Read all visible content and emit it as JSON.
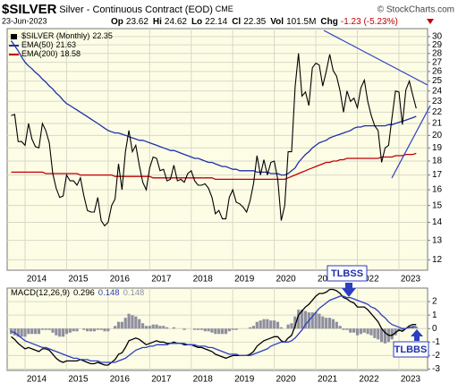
{
  "chart_data": [
    {
      "type": "line",
      "title": "$SILVER",
      "subtitle": "Silver - Continuous Contract (EOD)",
      "exchange": "CME",
      "credit": "© StockCharts.com",
      "date": "23-Jun-2023",
      "quote": [
        {
          "label": "Op",
          "value": 23.62
        },
        {
          "label": "Hi",
          "value": 24.62
        },
        {
          "label": "Lo",
          "value": 22.14
        },
        {
          "label": "Cl",
          "value": 22.35
        },
        {
          "label": "Vol",
          "value": "101.5M"
        },
        {
          "label": "Chg",
          "value": "-1.23 (-5.23%)"
        }
      ],
      "categories": [
        null,
        null,
        null,
        null,
        "2014",
        null,
        null,
        null,
        null,
        null,
        null,
        null,
        null,
        null,
        null,
        null,
        "2015",
        null,
        null,
        null,
        null,
        null,
        null,
        null,
        null,
        null,
        null,
        null,
        "2016",
        null,
        null,
        null,
        null,
        null,
        null,
        null,
        null,
        null,
        null,
        null,
        "2017",
        null,
        null,
        null,
        null,
        null,
        null,
        null,
        null,
        null,
        null,
        null,
        "2018",
        null,
        null,
        null,
        null,
        null,
        null,
        null,
        null,
        null,
        null,
        null,
        "2019",
        null,
        null,
        null,
        null,
        null,
        null,
        null,
        null,
        null,
        null,
        null,
        "2020",
        null,
        null,
        null,
        null,
        null,
        null,
        null,
        null,
        null,
        null,
        null,
        "2021",
        null,
        null,
        null,
        null,
        null,
        null,
        null,
        null,
        null,
        null,
        null,
        "2022",
        null,
        null,
        null,
        null,
        null,
        null,
        null,
        null,
        null,
        null,
        null,
        "2023",
        null,
        null,
        null,
        null,
        null
      ],
      "log_scale": true,
      "grid": true,
      "ylim": [
        11.5,
        31
      ],
      "yticks": [
        12,
        13,
        14,
        15,
        16,
        17,
        18,
        19,
        20,
        21,
        22,
        23,
        24,
        25,
        26,
        27,
        28,
        29,
        30
      ],
      "series": [
        {
          "name": "$SILVER (Monthly)",
          "legend_value": 22.35,
          "color": "#000000",
          "values": [
            21.7,
            21.8,
            19.5,
            19.5,
            19.2,
            21.0,
            19.7,
            19.1,
            19.0,
            21.0,
            20.4,
            19.4,
            17.1,
            16.1,
            15.5,
            15.6,
            17.0,
            16.6,
            16.6,
            16.3,
            16.8,
            15.6,
            14.7,
            14.6,
            14.6,
            15.5,
            14.1,
            13.8,
            14.0,
            15.0,
            15.4,
            17.8,
            16.0,
            18.7,
            20.4,
            18.7,
            19.2,
            17.7,
            16.5,
            16.0,
            17.5,
            18.3,
            18.2,
            17.3,
            17.4,
            16.6,
            16.7,
            17.7,
            16.6,
            16.7,
            16.5,
            17.1,
            17.3,
            16.6,
            16.3,
            16.3,
            16.4,
            16.1,
            15.5,
            14.5,
            14.7,
            14.2,
            14.2,
            15.5,
            16.0,
            15.2,
            15.1,
            14.9,
            14.6,
            15.3,
            16.4,
            18.4,
            17.0,
            18.1,
            17.0,
            17.9,
            18.0,
            16.7,
            14.1,
            15.0,
            18.7,
            18.7,
            24.4,
            28.0,
            23.5,
            23.9,
            22.6,
            26.4,
            26.9,
            26.7,
            24.5,
            26.0,
            27.9,
            26.1,
            25.5,
            24.0,
            22.0,
            24.0,
            23.0,
            23.3,
            22.4,
            24.3,
            25.1,
            23.0,
            21.7,
            20.8,
            20.4,
            17.9,
            19.0,
            19.2,
            21.5,
            24.0,
            23.9,
            20.9,
            24.1,
            25.0,
            23.6,
            22.35
          ]
        },
        {
          "name": "EMA(50)",
          "legend_value": 21.63,
          "color": "#1f2fa8",
          "values": [
            29.5,
            28.9,
            28.3,
            27.6,
            27.0,
            26.6,
            26.3,
            25.9,
            25.6,
            25.2,
            24.9,
            24.5,
            24.2,
            23.8,
            23.5,
            23.1,
            22.8,
            22.6,
            22.4,
            22.2,
            22.0,
            21.8,
            21.6,
            21.4,
            21.2,
            21.0,
            20.8,
            20.6,
            20.4,
            20.3,
            20.2,
            20.2,
            20.1,
            20.0,
            19.9,
            19.8,
            19.7,
            19.6,
            19.6,
            19.5,
            19.4,
            19.3,
            19.2,
            19.1,
            19.0,
            18.9,
            18.8,
            18.8,
            18.7,
            18.6,
            18.5,
            18.4,
            18.3,
            18.2,
            18.2,
            18.1,
            18.0,
            17.9,
            17.9,
            17.8,
            17.7,
            17.6,
            17.6,
            17.5,
            17.4,
            17.4,
            17.3,
            17.3,
            17.3,
            17.3,
            17.3,
            17.2,
            17.2,
            17.2,
            17.2,
            17.1,
            17.1,
            17.1,
            17.0,
            17.0,
            17.1,
            17.3,
            17.5,
            17.9,
            18.2,
            18.5,
            18.7,
            19.0,
            19.2,
            19.4,
            19.5,
            19.6,
            19.8,
            19.9,
            20.0,
            20.1,
            20.2,
            20.3,
            20.4,
            20.6,
            20.7,
            20.7,
            20.8,
            20.8,
            20.8,
            20.8,
            20.8,
            20.8,
            20.8,
            20.9,
            20.9,
            21.0,
            21.1,
            21.2,
            21.3,
            21.4,
            21.5,
            21.63
          ]
        },
        {
          "name": "EMA(200)",
          "legend_value": 18.58,
          "color": "#c00000",
          "values": [
            17.2,
            17.2,
            17.2,
            17.2,
            17.2,
            17.2,
            17.2,
            17.2,
            17.2,
            17.2,
            17.1,
            17.1,
            17.1,
            17.1,
            17.1,
            17.1,
            17.1,
            17.1,
            17.1,
            17.1,
            17.0,
            17.0,
            17.0,
            17.0,
            17.0,
            17.0,
            17.0,
            17.0,
            17.0,
            17.0,
            16.9,
            16.9,
            16.9,
            16.9,
            16.9,
            16.9,
            16.9,
            16.9,
            16.9,
            16.9,
            16.9,
            16.8,
            16.8,
            16.8,
            16.8,
            16.8,
            16.8,
            16.8,
            16.8,
            16.8,
            16.8,
            16.8,
            16.8,
            16.8,
            16.8,
            16.8,
            16.8,
            16.8,
            16.8,
            16.7,
            16.7,
            16.7,
            16.7,
            16.7,
            16.7,
            16.7,
            16.7,
            16.7,
            16.7,
            16.7,
            16.7,
            16.7,
            16.7,
            16.7,
            16.7,
            16.7,
            16.7,
            16.7,
            16.7,
            16.7,
            16.8,
            16.9,
            17.0,
            17.1,
            17.2,
            17.3,
            17.4,
            17.5,
            17.6,
            17.7,
            17.8,
            17.9,
            17.9,
            18.0,
            18.0,
            18.1,
            18.1,
            18.2,
            18.2,
            18.2,
            18.2,
            18.2,
            18.2,
            18.2,
            18.2,
            18.2,
            18.2,
            18.3,
            18.3,
            18.3,
            18.3,
            18.4,
            18.4,
            18.4,
            18.5,
            18.5,
            18.5,
            18.58
          ]
        }
      ]
    },
    {
      "type": "macd",
      "title": "MACD(12,26,9)",
      "categories": [
        null,
        null,
        null,
        null,
        "2014",
        null,
        null,
        null,
        null,
        null,
        null,
        null,
        null,
        null,
        null,
        null,
        "2015",
        null,
        null,
        null,
        null,
        null,
        null,
        null,
        null,
        null,
        null,
        null,
        "2016",
        null,
        null,
        null,
        null,
        null,
        null,
        null,
        null,
        null,
        null,
        null,
        "2017",
        null,
        null,
        null,
        null,
        null,
        null,
        null,
        null,
        null,
        null,
        null,
        "2018",
        null,
        null,
        null,
        null,
        null,
        null,
        null,
        null,
        null,
        null,
        null,
        "2019",
        null,
        null,
        null,
        null,
        null,
        null,
        null,
        null,
        null,
        null,
        null,
        "2020",
        null,
        null,
        null,
        null,
        null,
        null,
        null,
        null,
        null,
        null,
        null,
        "2021",
        null,
        null,
        null,
        null,
        null,
        null,
        null,
        null,
        null,
        null,
        null,
        "2022",
        null,
        null,
        null,
        null,
        null,
        null,
        null,
        null,
        null,
        null,
        null,
        "2023",
        null,
        null,
        null,
        null,
        null
      ],
      "grid": true,
      "ylim": [
        -3.1,
        3.0
      ],
      "yticks": [
        -3,
        -2,
        -1,
        0,
        1,
        2
      ],
      "annotations": [
        {
          "text": "TLBSS"
        },
        {
          "text": "TLBBS"
        }
      ],
      "series": [
        {
          "legend_value": 0.296,
          "color": "#000000",
          "kind": "line",
          "values": [
            -0.6,
            -0.8,
            -1.1,
            -1.3,
            -1.5,
            -1.4,
            -1.5,
            -1.6,
            -1.7,
            -1.5,
            -1.5,
            -1.6,
            -1.9,
            -2.2,
            -2.4,
            -2.5,
            -2.4,
            -2.4,
            -2.4,
            -2.4,
            -2.3,
            -2.4,
            -2.5,
            -2.6,
            -2.6,
            -2.5,
            -2.6,
            -2.7,
            -2.7,
            -2.5,
            -2.3,
            -1.9,
            -1.8,
            -1.4,
            -0.9,
            -0.8,
            -0.7,
            -0.8,
            -1.0,
            -1.2,
            -1.1,
            -1.0,
            -0.9,
            -1.0,
            -1.0,
            -1.1,
            -1.1,
            -1.0,
            -1.1,
            -1.1,
            -1.2,
            -1.2,
            -1.2,
            -1.3,
            -1.4,
            -1.4,
            -1.5,
            -1.6,
            -1.7,
            -1.9,
            -2.0,
            -2.1,
            -2.2,
            -2.1,
            -2.0,
            -2.0,
            -2.0,
            -2.0,
            -2.0,
            -1.9,
            -1.7,
            -1.3,
            -1.1,
            -0.9,
            -0.8,
            -0.7,
            -0.6,
            -0.6,
            -0.9,
            -1.0,
            -0.7,
            -0.5,
            0.2,
            1.0,
            1.3,
            1.6,
            1.8,
            2.1,
            2.4,
            2.6,
            2.6,
            2.7,
            2.9,
            2.9,
            2.8,
            2.6,
            2.3,
            2.2,
            2.0,
            1.9,
            1.6,
            1.6,
            1.6,
            1.4,
            1.1,
            0.8,
            0.5,
            0.0,
            -0.3,
            -0.5,
            -0.5,
            -0.3,
            -0.1,
            -0.2,
            0.0,
            0.2,
            0.3,
            0.296
          ]
        },
        {
          "legend_value": 0.148,
          "color": "#2b3fc0",
          "kind": "line",
          "values": [
            -0.2,
            -0.3,
            -0.5,
            -0.7,
            -0.9,
            -1.0,
            -1.1,
            -1.2,
            -1.3,
            -1.4,
            -1.4,
            -1.5,
            -1.6,
            -1.7,
            -1.8,
            -1.9,
            -2.0,
            -2.1,
            -2.2,
            -2.2,
            -2.3,
            -2.3,
            -2.3,
            -2.4,
            -2.4,
            -2.4,
            -2.5,
            -2.5,
            -2.5,
            -2.5,
            -2.5,
            -2.4,
            -2.3,
            -2.2,
            -2.0,
            -1.8,
            -1.6,
            -1.5,
            -1.4,
            -1.4,
            -1.3,
            -1.3,
            -1.2,
            -1.2,
            -1.2,
            -1.2,
            -1.1,
            -1.1,
            -1.1,
            -1.1,
            -1.1,
            -1.2,
            -1.2,
            -1.2,
            -1.3,
            -1.3,
            -1.3,
            -1.4,
            -1.4,
            -1.5,
            -1.6,
            -1.7,
            -1.8,
            -1.9,
            -1.9,
            -1.9,
            -2.0,
            -2.0,
            -2.0,
            -2.0,
            -1.9,
            -1.8,
            -1.7,
            -1.6,
            -1.5,
            -1.3,
            -1.2,
            -1.1,
            -1.0,
            -1.0,
            -1.0,
            -0.9,
            -0.7,
            -0.4,
            -0.1,
            0.3,
            0.6,
            0.9,
            1.2,
            1.5,
            1.7,
            1.9,
            2.1,
            2.2,
            2.3,
            2.4,
            2.4,
            2.3,
            2.3,
            2.2,
            2.1,
            2.0,
            1.9,
            1.8,
            1.6,
            1.5,
            1.3,
            1.0,
            0.8,
            0.5,
            0.3,
            0.2,
            0.1,
            0.0,
            0.0,
            0.1,
            0.1,
            0.148
          ]
        },
        {
          "legend_value": 0.148,
          "color": "#8f8f9f",
          "kind": "bar",
          "values": [
            -0.4,
            -0.5,
            -0.6,
            -0.6,
            -0.6,
            -0.4,
            -0.4,
            -0.4,
            -0.4,
            -0.1,
            -0.1,
            -0.1,
            -0.3,
            -0.5,
            -0.6,
            -0.6,
            -0.4,
            -0.3,
            -0.2,
            -0.2,
            0.0,
            -0.1,
            -0.2,
            -0.2,
            -0.2,
            -0.1,
            -0.1,
            -0.2,
            -0.2,
            0.0,
            0.2,
            0.5,
            0.5,
            0.8,
            1.1,
            1.0,
            0.9,
            0.7,
            0.4,
            0.2,
            0.2,
            0.3,
            0.3,
            0.2,
            0.2,
            0.1,
            0.0,
            0.1,
            0.0,
            0.0,
            -0.1,
            0.0,
            0.0,
            -0.1,
            -0.1,
            -0.1,
            -0.2,
            -0.2,
            -0.3,
            -0.4,
            -0.4,
            -0.4,
            -0.4,
            -0.2,
            -0.1,
            -0.1,
            0.0,
            0.0,
            0.0,
            0.1,
            0.2,
            0.5,
            0.6,
            0.7,
            0.7,
            0.6,
            0.6,
            0.5,
            0.1,
            0.0,
            0.3,
            0.4,
            0.9,
            1.4,
            1.4,
            1.3,
            1.2,
            1.2,
            1.2,
            1.1,
            0.9,
            0.8,
            0.8,
            0.7,
            0.5,
            0.2,
            -0.1,
            -0.1,
            -0.3,
            -0.3,
            -0.5,
            -0.4,
            -0.3,
            -0.4,
            -0.5,
            -0.7,
            -0.8,
            -1.0,
            -1.1,
            -1.0,
            -0.8,
            -0.5,
            -0.2,
            -0.2,
            0.0,
            0.1,
            0.2,
            0.148
          ]
        }
      ]
    }
  ]
}
